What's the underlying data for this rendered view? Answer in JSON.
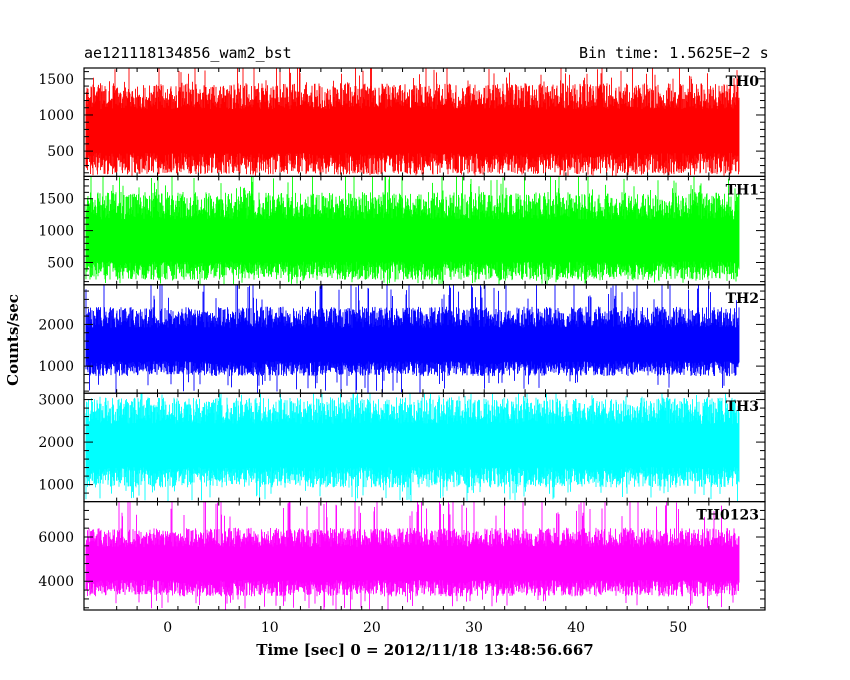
{
  "header": {
    "left": "ae121118134856_wam2_bst",
    "right": "Bin time: 1.5625E−2 s"
  },
  "chart_data": {
    "type": "line",
    "xlabel": "Time [sec] 0 = 2012/11/18 13:48:56.667",
    "ylabel": "Counts/sec",
    "xlim": [
      -8.2,
      58.5
    ],
    "data_xrange": [
      -8,
      56
    ],
    "xticks": [
      0,
      10,
      20,
      30,
      40,
      50
    ],
    "bin_time_s": 0.015625,
    "grid": false,
    "panels": [
      {
        "name": "TH0",
        "color": "#ff0000",
        "ylim": [
          150,
          1650
        ],
        "yticks": [
          500,
          1000,
          1500
        ],
        "mean": 750,
        "typical_range": [
          250,
          1350
        ],
        "peak": 1650
      },
      {
        "name": "TH1",
        "color": "#00ff00",
        "ylim": [
          150,
          1850
        ],
        "yticks": [
          500,
          1000,
          1500
        ],
        "mean": 780,
        "typical_range": [
          300,
          1500
        ],
        "peak": 1850
      },
      {
        "name": "TH2",
        "color": "#0000ff",
        "ylim": [
          350,
          2950
        ],
        "yticks": [
          1000,
          2000
        ],
        "mean": 1450,
        "typical_range": [
          850,
          2300
        ],
        "peak": 2950
      },
      {
        "name": "TH3",
        "color": "#00ffff",
        "ylim": [
          600,
          3150
        ],
        "yticks": [
          1000,
          2000,
          3000
        ],
        "mean": 1850,
        "typical_range": [
          1050,
          2900
        ],
        "peak": 3150
      },
      {
        "name": "TH0123",
        "color": "#ff00ff",
        "ylim": [
          2700,
          7600
        ],
        "yticks": [
          4000,
          6000
        ],
        "mean": 4750,
        "typical_range": [
          3500,
          6200
        ],
        "peak": 7600
      }
    ]
  }
}
